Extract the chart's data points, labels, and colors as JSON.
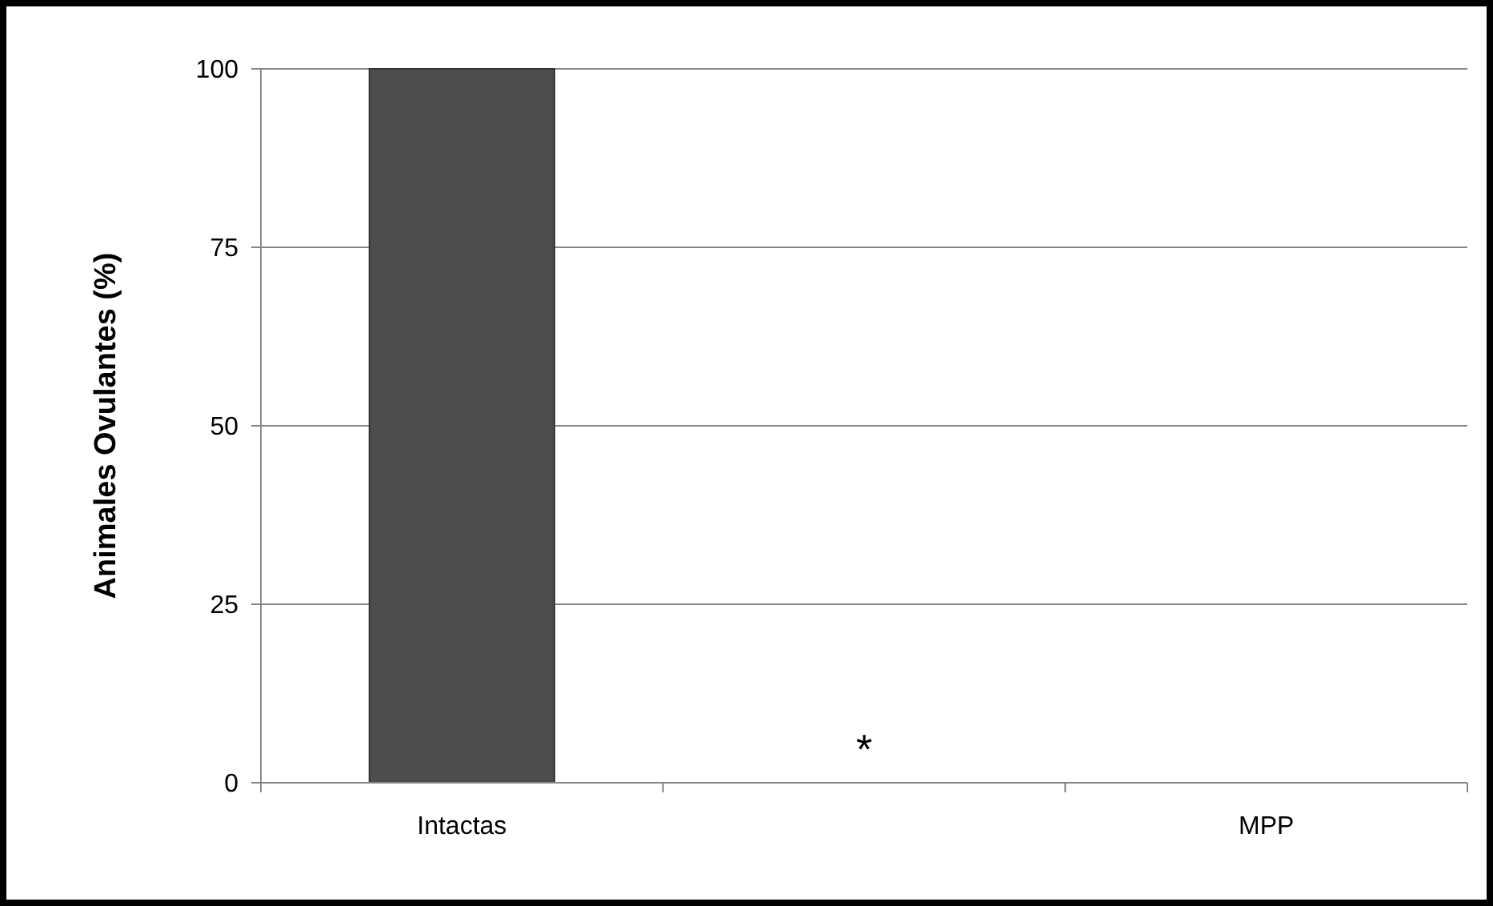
{
  "chart_data": {
    "type": "bar",
    "categories": [
      "Intactas",
      null,
      "MPP"
    ],
    "values": [
      100,
      0,
      0
    ],
    "color": "#4d4d4d",
    "ylabel": "Animales Ovulantes (%)",
    "ylim": [
      0,
      100
    ],
    "yticks": [
      0,
      25,
      50,
      75,
      100
    ],
    "grid": "y",
    "annotations": [
      "*"
    ]
  }
}
